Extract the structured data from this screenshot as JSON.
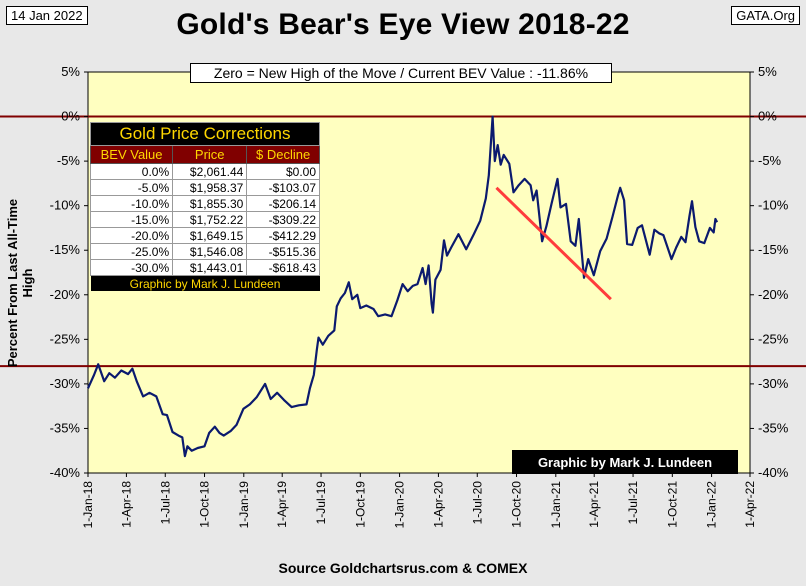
{
  "header": {
    "date": "14 Jan 2022",
    "source": "GATA.Org"
  },
  "chart_data": {
    "type": "line",
    "title": "Gold's Bear's Eye View 2018-22",
    "subtitle": "Zero = New High of the Move / Current  BEV Value : -11.86%",
    "ylabel": "Percent  From  Last  All-Time  High",
    "xlabel": "Source Goldchartsrus.com & COMEX",
    "ylim": [
      -40,
      5
    ],
    "y_ticks": [
      "5%",
      "0%",
      "-5%",
      "-10%",
      "-15%",
      "-20%",
      "-25%",
      "-30%",
      "-35%",
      "-40%"
    ],
    "x_ticks": [
      "1-Jan-18",
      "1-Apr-18",
      "1-Jul-18",
      "1-Oct-18",
      "1-Jan-19",
      "1-Apr-19",
      "1-Jul-19",
      "1-Oct-19",
      "1-Jan-20",
      "1-Apr-20",
      "1-Jul-20",
      "1-Oct-20",
      "1-Jan-21",
      "1-Apr-21",
      "1-Jul-21",
      "1-Oct-21",
      "1-Jan-22",
      "1-Apr-22"
    ],
    "reference_lines": [
      0,
      -28
    ],
    "colors": {
      "series": "#0b1a6e",
      "trend": "#ff3c3c",
      "reference": "#800000",
      "plot_bg": "#ffffc0"
    },
    "series": [
      {
        "points": [
          [
            "2018-01-01",
            -30.5
          ],
          [
            "2018-01-15",
            -29.0
          ],
          [
            "2018-01-25",
            -27.8
          ],
          [
            "2018-02-08",
            -29.7
          ],
          [
            "2018-02-20",
            -28.8
          ],
          [
            "2018-03-05",
            -29.3
          ],
          [
            "2018-03-20",
            -28.5
          ],
          [
            "2018-04-05",
            -28.9
          ],
          [
            "2018-04-15",
            -28.3
          ],
          [
            "2018-04-25",
            -29.7
          ],
          [
            "2018-05-10",
            -31.4
          ],
          [
            "2018-05-25",
            -31.0
          ],
          [
            "2018-06-10",
            -31.4
          ],
          [
            "2018-06-25",
            -33.4
          ],
          [
            "2018-07-05",
            -33.5
          ],
          [
            "2018-07-18",
            -35.4
          ],
          [
            "2018-08-01",
            -35.8
          ],
          [
            "2018-08-10",
            -36.0
          ],
          [
            "2018-08-16",
            -38.1
          ],
          [
            "2018-08-22",
            -37.0
          ],
          [
            "2018-09-01",
            -37.5
          ],
          [
            "2018-09-15",
            -37.2
          ],
          [
            "2018-10-01",
            -37.0
          ],
          [
            "2018-10-12",
            -35.5
          ],
          [
            "2018-10-25",
            -34.8
          ],
          [
            "2018-11-05",
            -35.5
          ],
          [
            "2018-11-15",
            -35.8
          ],
          [
            "2018-12-01",
            -35.3
          ],
          [
            "2018-12-15",
            -34.6
          ],
          [
            "2018-12-31",
            -32.8
          ],
          [
            "2019-01-15",
            -32.3
          ],
          [
            "2019-01-31",
            -31.5
          ],
          [
            "2019-02-20",
            -30.0
          ],
          [
            "2019-03-05",
            -31.7
          ],
          [
            "2019-03-20",
            -31.0
          ],
          [
            "2019-04-05",
            -31.8
          ],
          [
            "2019-04-23",
            -32.6
          ],
          [
            "2019-05-10",
            -32.4
          ],
          [
            "2019-05-28",
            -32.3
          ],
          [
            "2019-06-05",
            -30.5
          ],
          [
            "2019-06-14",
            -29.0
          ],
          [
            "2019-06-21",
            -26.2
          ],
          [
            "2019-06-25",
            -24.8
          ],
          [
            "2019-07-05",
            -25.6
          ],
          [
            "2019-07-18",
            -24.6
          ],
          [
            "2019-08-01",
            -24.0
          ],
          [
            "2019-08-07",
            -21.3
          ],
          [
            "2019-08-16",
            -20.4
          ],
          [
            "2019-08-26",
            -19.8
          ],
          [
            "2019-09-04",
            -18.6
          ],
          [
            "2019-09-12",
            -20.5
          ],
          [
            "2019-09-24",
            -20.0
          ],
          [
            "2019-10-01",
            -21.5
          ],
          [
            "2019-10-15",
            -21.2
          ],
          [
            "2019-11-01",
            -21.6
          ],
          [
            "2019-11-12",
            -22.4
          ],
          [
            "2019-11-28",
            -22.2
          ],
          [
            "2019-12-13",
            -22.4
          ],
          [
            "2019-12-27",
            -20.6
          ],
          [
            "2020-01-08",
            -18.8
          ],
          [
            "2020-01-20",
            -19.6
          ],
          [
            "2020-02-01",
            -19.0
          ],
          [
            "2020-02-12",
            -18.8
          ],
          [
            "2020-02-24",
            -17.0
          ],
          [
            "2020-03-02",
            -18.8
          ],
          [
            "2020-03-09",
            -16.7
          ],
          [
            "2020-03-16",
            -21.0
          ],
          [
            "2020-03-19",
            -22.0
          ],
          [
            "2020-03-25",
            -18.3
          ],
          [
            "2020-04-06",
            -17.2
          ],
          [
            "2020-04-14",
            -13.9
          ],
          [
            "2020-04-21",
            -15.6
          ],
          [
            "2020-05-01",
            -14.7
          ],
          [
            "2020-05-18",
            -13.2
          ],
          [
            "2020-06-05",
            -14.9
          ],
          [
            "2020-06-23",
            -13.2
          ],
          [
            "2020-07-08",
            -11.7
          ],
          [
            "2020-07-21",
            -9.2
          ],
          [
            "2020-07-28",
            -6.6
          ],
          [
            "2020-08-06",
            0.0
          ],
          [
            "2020-08-11",
            -5.0
          ],
          [
            "2020-08-18",
            -3.2
          ],
          [
            "2020-08-25",
            -5.4
          ],
          [
            "2020-09-01",
            -4.3
          ],
          [
            "2020-09-14",
            -5.3
          ],
          [
            "2020-09-24",
            -8.5
          ],
          [
            "2020-10-06",
            -7.7
          ],
          [
            "2020-10-20",
            -7.0
          ],
          [
            "2020-11-03",
            -7.7
          ],
          [
            "2020-11-09",
            -9.4
          ],
          [
            "2020-11-17",
            -8.3
          ],
          [
            "2020-11-30",
            -14.0
          ],
          [
            "2020-12-10",
            -12.3
          ],
          [
            "2020-12-22",
            -9.8
          ],
          [
            "2021-01-05",
            -7.0
          ],
          [
            "2021-01-12",
            -10.2
          ],
          [
            "2021-01-25",
            -9.8
          ],
          [
            "2021-02-05",
            -14.0
          ],
          [
            "2021-02-16",
            -14.5
          ],
          [
            "2021-02-24",
            -11.5
          ],
          [
            "2021-03-08",
            -18.1
          ],
          [
            "2021-03-18",
            -16.0
          ],
          [
            "2021-03-31",
            -17.8
          ],
          [
            "2021-04-15",
            -15.1
          ],
          [
            "2021-04-30",
            -13.7
          ],
          [
            "2021-05-14",
            -11.2
          ],
          [
            "2021-05-27",
            -8.8
          ],
          [
            "2021-06-01",
            -8.0
          ],
          [
            "2021-06-10",
            -9.4
          ],
          [
            "2021-06-17",
            -14.3
          ],
          [
            "2021-06-29",
            -14.4
          ],
          [
            "2021-07-12",
            -12.5
          ],
          [
            "2021-07-22",
            -12.2
          ],
          [
            "2021-08-09",
            -15.5
          ],
          [
            "2021-08-20",
            -12.7
          ],
          [
            "2021-08-31",
            -13.1
          ],
          [
            "2021-09-10",
            -13.3
          ],
          [
            "2021-09-29",
            -16.0
          ],
          [
            "2021-10-10",
            -14.7
          ],
          [
            "2021-10-22",
            -13.5
          ],
          [
            "2021-11-01",
            -14.1
          ],
          [
            "2021-11-10",
            -11.2
          ],
          [
            "2021-11-16",
            -9.5
          ],
          [
            "2021-11-24",
            -12.4
          ],
          [
            "2021-12-03",
            -14.0
          ],
          [
            "2021-12-15",
            -14.2
          ],
          [
            "2021-12-28",
            -12.5
          ],
          [
            "2022-01-06",
            -13.0
          ],
          [
            "2022-01-10",
            -11.5
          ],
          [
            "2022-01-14",
            -11.86
          ]
        ]
      }
    ],
    "trend_line": [
      [
        "2020-08-15",
        -8.0
      ],
      [
        "2021-05-10",
        -20.5
      ]
    ]
  },
  "corrections_table": {
    "title": "Gold Price Corrections",
    "headers": [
      "BEV Value",
      "Price",
      "$ Decline"
    ],
    "rows": [
      [
        "0.0%",
        "$2,061.44",
        "$0.00"
      ],
      [
        "-5.0%",
        "$1,958.37",
        "-$103.07"
      ],
      [
        "-10.0%",
        "$1,855.30",
        "-$206.14"
      ],
      [
        "-15.0%",
        "$1,752.22",
        "-$309.22"
      ],
      [
        "-20.0%",
        "$1,649.15",
        "-$412.29"
      ],
      [
        "-25.0%",
        "$1,546.08",
        "-$515.36"
      ],
      [
        "-30.0%",
        "$1,443.01",
        "-$618.43"
      ]
    ],
    "credit": "Graphic by Mark J. Lundeen"
  },
  "credit_box": "Graphic by Mark J. Lundeen"
}
